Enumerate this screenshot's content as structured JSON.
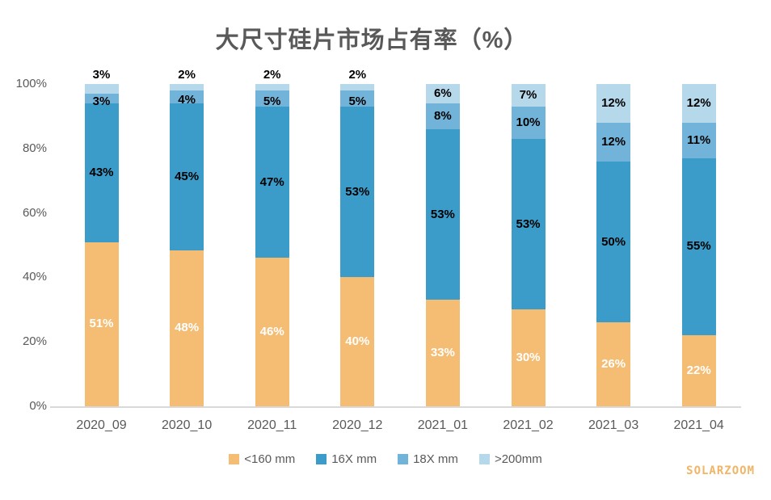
{
  "title": "大尺寸硅片市场占有率（%）",
  "watermark": "SOLARZOOM",
  "colors": {
    "background": "#FFFFFF",
    "title_text": "#595959",
    "axis_text": "#595959",
    "axis_line": "#D9D9D9",
    "watermark_text": "#F0B566"
  },
  "axis": {
    "y_ticks": [
      {
        "value": 0,
        "label": "0%"
      },
      {
        "value": 20,
        "label": "20%"
      },
      {
        "value": 40,
        "label": "40%"
      },
      {
        "value": 60,
        "label": "60%"
      },
      {
        "value": 80,
        "label": "80%"
      },
      {
        "value": 100,
        "label": "100%"
      }
    ]
  },
  "chart_data": {
    "type": "bar",
    "stacked": true,
    "title": "大尺寸硅片市场占有率（%）",
    "xlabel": "",
    "ylabel": "",
    "ylim": [
      0,
      100
    ],
    "grid": false,
    "legend_position": "bottom",
    "value_suffix": "%",
    "categories": [
      "2020_09",
      "2020_10",
      "2020_11",
      "2020_12",
      "2021_01",
      "2021_02",
      "2021_03",
      "2021_04"
    ],
    "series": [
      {
        "name": "<160 mm",
        "color": "#F5BD74",
        "label_color": "#FFFFFF",
        "values": [
          51,
          48,
          46,
          40,
          33,
          30,
          26,
          22
        ]
      },
      {
        "name": "16X mm",
        "color": "#3B9CC9",
        "label_color": "#000000",
        "values": [
          43,
          45,
          47,
          53,
          53,
          53,
          50,
          55
        ]
      },
      {
        "name": "18X mm",
        "color": "#72B3DA",
        "label_color": "#000000",
        "values": [
          3,
          4,
          5,
          5,
          8,
          10,
          12,
          11
        ]
      },
      {
        "name": ">200mm",
        "color": "#B5D8EA",
        "label_color": "#000000",
        "values": [
          3,
          2,
          2,
          2,
          6,
          7,
          12,
          12
        ]
      }
    ]
  }
}
